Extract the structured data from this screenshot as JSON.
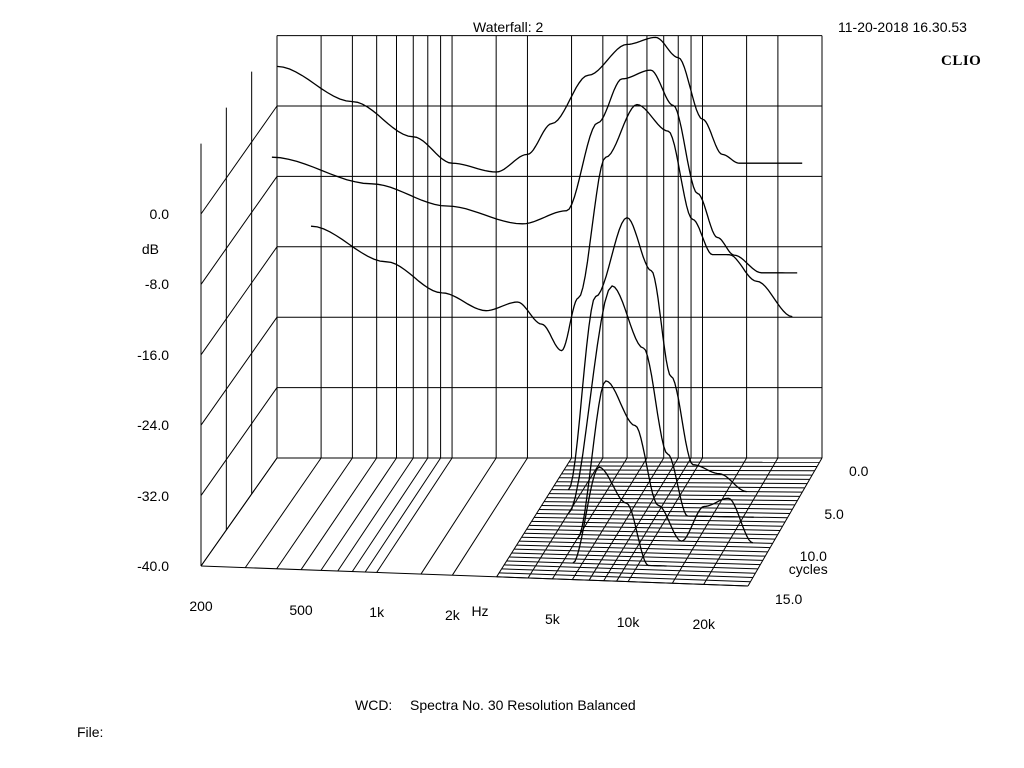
{
  "header": {
    "title": "Waterfall: 2",
    "timestamp": "11-20-2018 16.30.53",
    "brand": "CLIO"
  },
  "footer": {
    "info_label": "WCD:",
    "info_value": "Spectra No. 30   Resolution Balanced",
    "file_label": "File:"
  },
  "chart_data": {
    "type": "waterfall",
    "title": "Waterfall: 2",
    "xlabel": "Hz",
    "x_scale": "log",
    "xlim": [
      200,
      30000
    ],
    "x_ticks": [
      "200",
      "500",
      "1k",
      "2k",
      "5k",
      "10k",
      "20k"
    ],
    "x_tick_values": [
      200,
      500,
      1000,
      2000,
      5000,
      10000,
      20000
    ],
    "ylabel": "dB",
    "ylim": [
      -40,
      8
    ],
    "y_ticks": [
      "0.0",
      "-8.0",
      "-16.0",
      "-24.0",
      "-32.0",
      "-40.0"
    ],
    "y_tick_values": [
      0,
      -8,
      -16,
      -24,
      -32,
      -40
    ],
    "zlabel": "cycles",
    "zlim": [
      0,
      15
    ],
    "z_ticks": [
      "0.0",
      "5.0",
      "10.0",
      "15.0"
    ],
    "z_tick_values": [
      0,
      5,
      10,
      15
    ],
    "spectra_count": 30,
    "grid": true,
    "line_color": "#000000",
    "background": "#ffffff",
    "slices": [
      {
        "cycles": 0.0,
        "x": [
          200,
          400,
          700,
          1000,
          1500,
          2000,
          2500,
          3500,
          5000,
          6500,
          8000,
          10000,
          12000,
          14000,
          18000,
          25000
        ],
        "y": [
          4.5,
          0.5,
          -3.5,
          -6.5,
          -7.5,
          -5.5,
          -2.0,
          3.5,
          7.0,
          7.8,
          5.5,
          -1.5,
          -5.5,
          -6.5,
          -6.5,
          -6.5
        ]
      },
      {
        "cycles": 1.0,
        "x": [
          200,
          500,
          1000,
          2000,
          3000,
          4000,
          5000,
          6500,
          8000,
          10000,
          12000,
          14000,
          18000,
          25000
        ],
        "y": [
          -5.0,
          -8.0,
          -10.5,
          -12.5,
          -11.0,
          -1.0,
          4.0,
          5.0,
          1.0,
          -9.0,
          -14.0,
          -16.0,
          -18.0,
          -18.0
        ]
      },
      {
        "cycles": 2.0,
        "x": [
          300,
          600,
          1000,
          1500,
          2000,
          2500,
          3000,
          3500,
          4500,
          6000,
          8000,
          10000,
          12000,
          14000,
          18000,
          25000
        ],
        "y": [
          -12.0,
          -16.0,
          -19.5,
          -21.5,
          -20.5,
          -23.0,
          -26.0,
          -20.0,
          -4.0,
          2.0,
          -1.0,
          -11.0,
          -15.0,
          -15.0,
          -18.0,
          -22.0
        ]
      },
      {
        "cycles": 4.0,
        "x": [
          3500,
          4500,
          6000,
          7500,
          9000,
          11000,
          14000,
          18000
        ],
        "y": [
          -40.0,
          -18.0,
          -9.0,
          -15.0,
          -27.0,
          -37.0,
          -38.0,
          -40.0
        ]
      },
      {
        "cycles": 7.0,
        "x": [
          4000,
          6000,
          8000,
          10000,
          12000,
          16000,
          22000
        ],
        "y": [
          -40.0,
          -14.0,
          -21.0,
          -33.0,
          -40.0,
          -40.0,
          -40.0
        ]
      },
      {
        "cycles": 10.0,
        "x": [
          5000,
          6500,
          8500,
          10500,
          13000,
          16000,
          20000,
          25000
        ],
        "y": [
          -40.0,
          -22.0,
          -27.0,
          -36.0,
          -40.0,
          -36.0,
          -35.0,
          -40.0
        ]
      },
      {
        "cycles": 13.0,
        "x": [
          5500,
          7000,
          9000,
          11000,
          13000
        ],
        "y": [
          -40.0,
          -29.0,
          -33.0,
          -40.0,
          -40.0
        ]
      }
    ]
  }
}
